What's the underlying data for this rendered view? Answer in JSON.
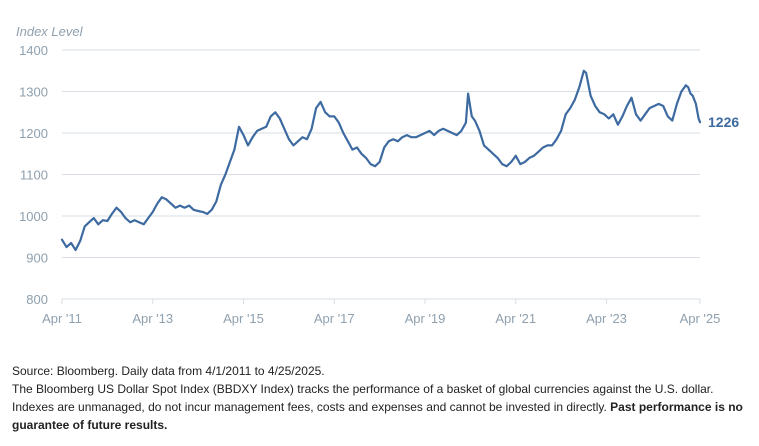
{
  "chart_data": {
    "type": "line",
    "ylabel": "Index Level",
    "ylim": [
      800,
      1400
    ],
    "yticks": [
      800,
      900,
      1000,
      1100,
      1200,
      1300,
      1400
    ],
    "xlim": [
      2011.25,
      2025.31
    ],
    "xticks": [
      {
        "label": "Apr '11",
        "value": 2011.25
      },
      {
        "label": "Apr '13",
        "value": 2013.25
      },
      {
        "label": "Apr '15",
        "value": 2015.25
      },
      {
        "label": "Apr '17",
        "value": 2017.25
      },
      {
        "label": "Apr '19",
        "value": 2019.25
      },
      {
        "label": "Apr '21",
        "value": 2021.25
      },
      {
        "label": "Apr '23",
        "value": 2023.25
      },
      {
        "label": "Apr '25",
        "value": 2025.31
      }
    ],
    "grid": "horizontal",
    "end_label": "1226",
    "series": [
      {
        "color": "#3d6aa0",
        "points": [
          [
            2011.25,
            943
          ],
          [
            2011.35,
            925
          ],
          [
            2011.45,
            935
          ],
          [
            2011.55,
            918
          ],
          [
            2011.65,
            940
          ],
          [
            2011.75,
            975
          ],
          [
            2011.85,
            985
          ],
          [
            2011.95,
            995
          ],
          [
            2012.05,
            980
          ],
          [
            2012.15,
            990
          ],
          [
            2012.25,
            988
          ],
          [
            2012.35,
            1005
          ],
          [
            2012.45,
            1020
          ],
          [
            2012.55,
            1010
          ],
          [
            2012.65,
            995
          ],
          [
            2012.75,
            985
          ],
          [
            2012.85,
            990
          ],
          [
            2012.95,
            985
          ],
          [
            2013.05,
            980
          ],
          [
            2013.15,
            995
          ],
          [
            2013.25,
            1010
          ],
          [
            2013.35,
            1030
          ],
          [
            2013.45,
            1045
          ],
          [
            2013.55,
            1040
          ],
          [
            2013.65,
            1030
          ],
          [
            2013.75,
            1020
          ],
          [
            2013.85,
            1025
          ],
          [
            2013.95,
            1020
          ],
          [
            2014.05,
            1025
          ],
          [
            2014.15,
            1015
          ],
          [
            2014.25,
            1012
          ],
          [
            2014.35,
            1010
          ],
          [
            2014.45,
            1005
          ],
          [
            2014.55,
            1015
          ],
          [
            2014.65,
            1035
          ],
          [
            2014.75,
            1075
          ],
          [
            2014.85,
            1100
          ],
          [
            2014.95,
            1130
          ],
          [
            2015.05,
            1160
          ],
          [
            2015.15,
            1215
          ],
          [
            2015.25,
            1195
          ],
          [
            2015.35,
            1170
          ],
          [
            2015.45,
            1190
          ],
          [
            2015.55,
            1205
          ],
          [
            2015.65,
            1210
          ],
          [
            2015.75,
            1215
          ],
          [
            2015.85,
            1240
          ],
          [
            2015.95,
            1250
          ],
          [
            2016.05,
            1235
          ],
          [
            2016.15,
            1210
          ],
          [
            2016.25,
            1185
          ],
          [
            2016.35,
            1170
          ],
          [
            2016.45,
            1180
          ],
          [
            2016.55,
            1190
          ],
          [
            2016.65,
            1185
          ],
          [
            2016.75,
            1210
          ],
          [
            2016.85,
            1260
          ],
          [
            2016.95,
            1275
          ],
          [
            2017.05,
            1250
          ],
          [
            2017.15,
            1240
          ],
          [
            2017.25,
            1240
          ],
          [
            2017.35,
            1225
          ],
          [
            2017.45,
            1200
          ],
          [
            2017.55,
            1180
          ],
          [
            2017.65,
            1160
          ],
          [
            2017.75,
            1165
          ],
          [
            2017.85,
            1150
          ],
          [
            2017.95,
            1140
          ],
          [
            2018.05,
            1125
          ],
          [
            2018.15,
            1120
          ],
          [
            2018.25,
            1130
          ],
          [
            2018.35,
            1165
          ],
          [
            2018.45,
            1180
          ],
          [
            2018.55,
            1185
          ],
          [
            2018.65,
            1180
          ],
          [
            2018.75,
            1190
          ],
          [
            2018.85,
            1195
          ],
          [
            2018.95,
            1190
          ],
          [
            2019.05,
            1190
          ],
          [
            2019.15,
            1195
          ],
          [
            2019.25,
            1200
          ],
          [
            2019.35,
            1205
          ],
          [
            2019.45,
            1195
          ],
          [
            2019.55,
            1205
          ],
          [
            2019.65,
            1210
          ],
          [
            2019.75,
            1205
          ],
          [
            2019.85,
            1200
          ],
          [
            2019.95,
            1195
          ],
          [
            2020.05,
            1205
          ],
          [
            2020.15,
            1225
          ],
          [
            2020.2,
            1295
          ],
          [
            2020.28,
            1240
          ],
          [
            2020.35,
            1230
          ],
          [
            2020.45,
            1205
          ],
          [
            2020.55,
            1170
          ],
          [
            2020.65,
            1160
          ],
          [
            2020.75,
            1150
          ],
          [
            2020.85,
            1140
          ],
          [
            2020.95,
            1125
          ],
          [
            2021.05,
            1120
          ],
          [
            2021.15,
            1130
          ],
          [
            2021.25,
            1145
          ],
          [
            2021.35,
            1125
          ],
          [
            2021.45,
            1130
          ],
          [
            2021.55,
            1140
          ],
          [
            2021.65,
            1145
          ],
          [
            2021.75,
            1155
          ],
          [
            2021.85,
            1165
          ],
          [
            2021.95,
            1170
          ],
          [
            2022.05,
            1170
          ],
          [
            2022.15,
            1185
          ],
          [
            2022.25,
            1205
          ],
          [
            2022.35,
            1245
          ],
          [
            2022.45,
            1260
          ],
          [
            2022.55,
            1280
          ],
          [
            2022.65,
            1310
          ],
          [
            2022.75,
            1350
          ],
          [
            2022.8,
            1345
          ],
          [
            2022.9,
            1290
          ],
          [
            2023.0,
            1265
          ],
          [
            2023.1,
            1250
          ],
          [
            2023.2,
            1245
          ],
          [
            2023.3,
            1235
          ],
          [
            2023.4,
            1245
          ],
          [
            2023.5,
            1220
          ],
          [
            2023.6,
            1240
          ],
          [
            2023.7,
            1265
          ],
          [
            2023.8,
            1285
          ],
          [
            2023.9,
            1245
          ],
          [
            2024.0,
            1230
          ],
          [
            2024.1,
            1245
          ],
          [
            2024.2,
            1260
          ],
          [
            2024.3,
            1265
          ],
          [
            2024.4,
            1270
          ],
          [
            2024.5,
            1265
          ],
          [
            2024.6,
            1240
          ],
          [
            2024.7,
            1230
          ],
          [
            2024.8,
            1270
          ],
          [
            2024.9,
            1300
          ],
          [
            2025.0,
            1315
          ],
          [
            2025.05,
            1310
          ],
          [
            2025.1,
            1295
          ],
          [
            2025.15,
            1290
          ],
          [
            2025.22,
            1270
          ],
          [
            2025.28,
            1235
          ],
          [
            2025.31,
            1226
          ]
        ]
      }
    ]
  },
  "footer": {
    "line1": "Source: Bloomberg. Daily data from 4/1/2011 to 4/25/2025.",
    "line2": "The Bloomberg US Dollar Spot Index (BBDXY Index) tracks the performance of a basket of global currencies against the U.S. dollar.",
    "line3_plain": "Indexes are unmanaged, do not incur management fees, costs and expenses and cannot be invested in directly. ",
    "line3_bold": "Past performance is no guarantee of future results."
  }
}
